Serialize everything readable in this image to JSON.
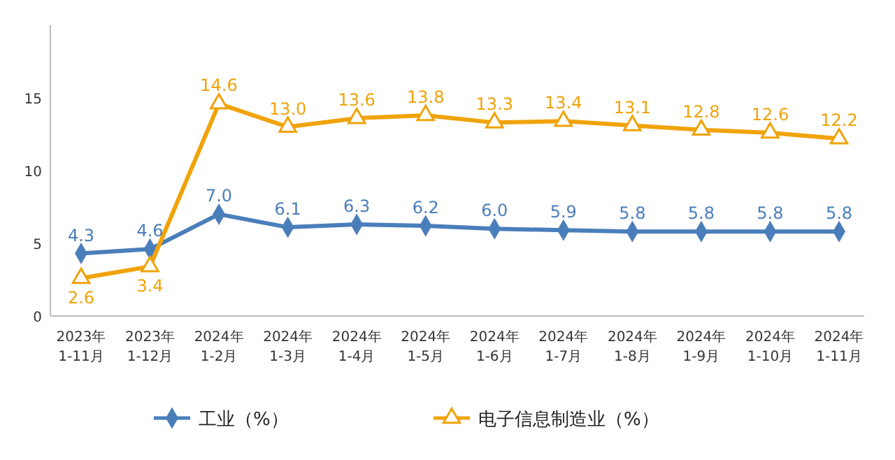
{
  "chart_data": {
    "type": "line",
    "categories": [
      "2023年\n1-11月",
      "2023年\n1-12月",
      "2024年\n1-2月",
      "2024年\n1-3月",
      "2024年\n1-4月",
      "2024年\n1-5月",
      "2024年\n1-6月",
      "2024年\n1-7月",
      "2024年\n1-8月",
      "2024年\n1-9月",
      "2024年\n1-10月",
      "2024年\n1-11月"
    ],
    "series": [
      {
        "name": "工业（%）",
        "color": "#4a7ebb",
        "marker": "diamond",
        "values": [
          4.3,
          4.6,
          7.0,
          6.1,
          6.3,
          6.2,
          6.0,
          5.9,
          5.8,
          5.8,
          5.8,
          5.8
        ],
        "value_labels": [
          "4.3",
          "4.6",
          "7.0",
          "6.1",
          "6.3",
          "6.2",
          "6.0",
          "5.9",
          "5.8",
          "5.8",
          "5.8",
          "5.8"
        ]
      },
      {
        "name": "电子信息制造业（%）",
        "color": "#f0a30a",
        "marker": "triangle",
        "values": [
          2.6,
          3.4,
          14.6,
          13.0,
          13.6,
          13.8,
          13.3,
          13.4,
          13.1,
          12.8,
          12.6,
          12.2
        ],
        "value_labels": [
          "2.6",
          "3.4",
          "14.6",
          "13.0",
          "13.6",
          "13.8",
          "13.3",
          "13.4",
          "13.1",
          "12.8",
          "12.6",
          "12.2"
        ]
      }
    ],
    "ylim": [
      0,
      20
    ],
    "yticks": [
      0,
      5,
      10,
      15
    ],
    "grid": false,
    "legend": "bottom"
  }
}
